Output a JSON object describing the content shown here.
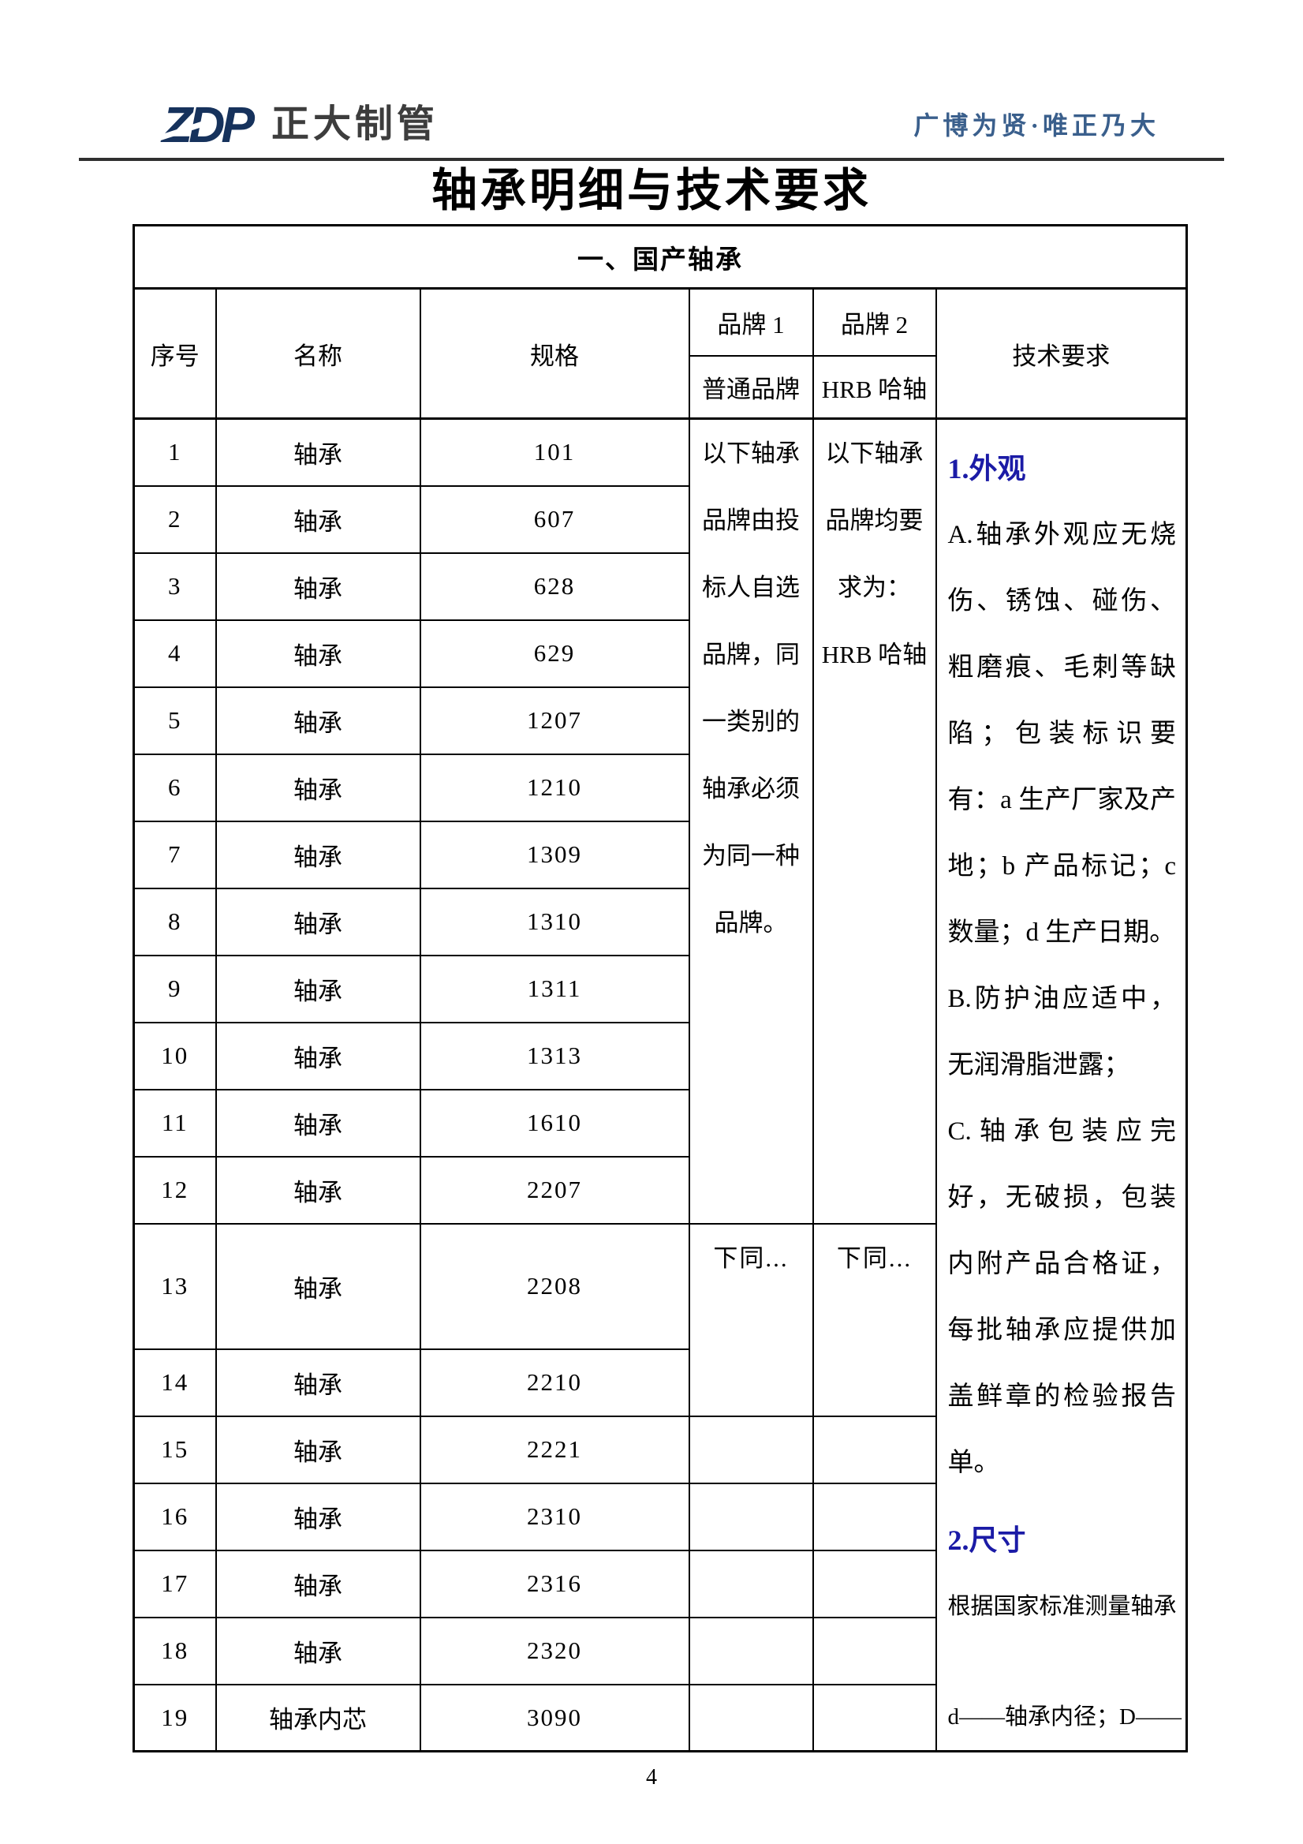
{
  "header": {
    "logo_zdp": "ZDP",
    "logo_company": "正大制管",
    "slogan": "广博为贤·唯正乃大"
  },
  "title": "轴承明细与技术要求",
  "table": {
    "section_title": "一、国产轴承",
    "columns": {
      "seq": "序号",
      "name": "名称",
      "spec": "规格",
      "brand1": "品牌 1",
      "brand1_sub": "普通品牌",
      "brand2": "品牌 2",
      "brand2_sub": "HRB 哈轴",
      "tech": "技术要求"
    },
    "rows": [
      {
        "seq": "1",
        "name": "轴承",
        "spec": "101"
      },
      {
        "seq": "2",
        "name": "轴承",
        "spec": "607"
      },
      {
        "seq": "3",
        "name": "轴承",
        "spec": "628"
      },
      {
        "seq": "4",
        "name": "轴承",
        "spec": "629"
      },
      {
        "seq": "5",
        "name": "轴承",
        "spec": "1207"
      },
      {
        "seq": "6",
        "name": "轴承",
        "spec": "1210"
      },
      {
        "seq": "7",
        "name": "轴承",
        "spec": "1309"
      },
      {
        "seq": "8",
        "name": "轴承",
        "spec": "1310"
      },
      {
        "seq": "9",
        "name": "轴承",
        "spec": "1311"
      },
      {
        "seq": "10",
        "name": "轴承",
        "spec": "1313"
      },
      {
        "seq": "11",
        "name": "轴承",
        "spec": "1610"
      },
      {
        "seq": "12",
        "name": "轴承",
        "spec": "2207"
      },
      {
        "seq": "13",
        "name": "轴承",
        "spec": "2208"
      },
      {
        "seq": "14",
        "name": "轴承",
        "spec": "2210"
      },
      {
        "seq": "15",
        "name": "轴承",
        "spec": "2221"
      },
      {
        "seq": "16",
        "name": "轴承",
        "spec": "2310"
      },
      {
        "seq": "17",
        "name": "轴承",
        "spec": "2316"
      },
      {
        "seq": "18",
        "name": "轴承",
        "spec": "2320"
      },
      {
        "seq": "19",
        "name": "轴承内芯",
        "spec": "3090"
      }
    ],
    "brand1_note_lines": [
      "以下轴承",
      "品牌由投",
      "标人自选",
      "品牌，同",
      "一类别的",
      "轴承必须",
      "为同一种",
      "品牌。"
    ],
    "brand2_note_lines": [
      "以下轴承",
      "品牌均要",
      "求为：",
      "HRB 哈轴"
    ],
    "brand1_ditto": "下同...",
    "brand2_ditto": "下同...",
    "tech_requirements": {
      "h1": "1.外观",
      "p1": "A.轴承外观应无烧伤、锈蚀、碰伤、粗磨痕、毛刺等缺陷；包装标识要有：a 生产厂家及产地；b 产品标记；c 数量；d 生产日期。",
      "p2": "B.防护油应适中，无润滑脂泄露；",
      "p3": "C.轴承包装应完好，无破损，包装内附产品合格证，每批轴承应提供加盖鲜章的检验报告单。",
      "h2": "2.尺寸",
      "p4": "根据国家标准测量轴承",
      "p5": "d——轴承内径；D——"
    }
  },
  "footer": {
    "page_number": "4"
  },
  "colors": {
    "accent_blue": "#1b1ba6",
    "slogan_blue": "#3a5f8c",
    "logo_navy": "#16325c",
    "company_gray": "#3d3d3d",
    "border_black": "#000000"
  }
}
